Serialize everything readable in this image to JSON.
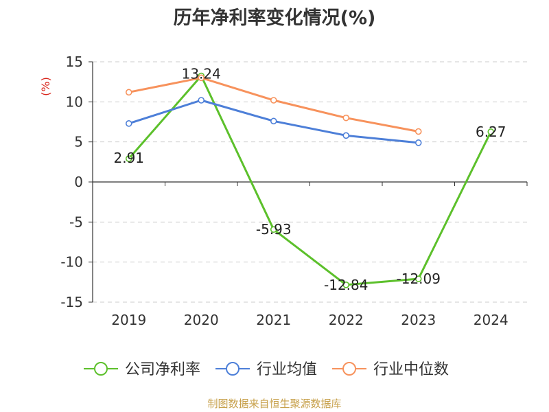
{
  "chart_data": {
    "type": "line",
    "title": "历年净利率变化情况(%)",
    "ylabel": "(%)",
    "xlabel": "",
    "categories": [
      "2019",
      "2020",
      "2021",
      "2022",
      "2023",
      "2024"
    ],
    "ylim": [
      -15,
      15
    ],
    "yticks": [
      -15,
      -10,
      -5,
      0,
      5,
      10,
      15
    ],
    "grid": true,
    "legend_position": "bottom",
    "series": [
      {
        "name": "公司净利率",
        "color": "#5cc02b",
        "values": [
          2.91,
          13.24,
          -5.93,
          -12.84,
          -12.09,
          6.27
        ],
        "labels": [
          "2.91",
          "13.24",
          "-5.93",
          "-12.84",
          "-12.09",
          "6.27"
        ]
      },
      {
        "name": "行业均值",
        "color": "#4d7fd8",
        "values": [
          7.3,
          10.2,
          7.6,
          5.8,
          4.9,
          null
        ]
      },
      {
        "name": "行业中位数",
        "color": "#f7925c",
        "values": [
          11.2,
          13.0,
          10.2,
          8.0,
          6.3,
          null
        ]
      }
    ],
    "source": "制图数据来自恒生聚源数据库"
  }
}
